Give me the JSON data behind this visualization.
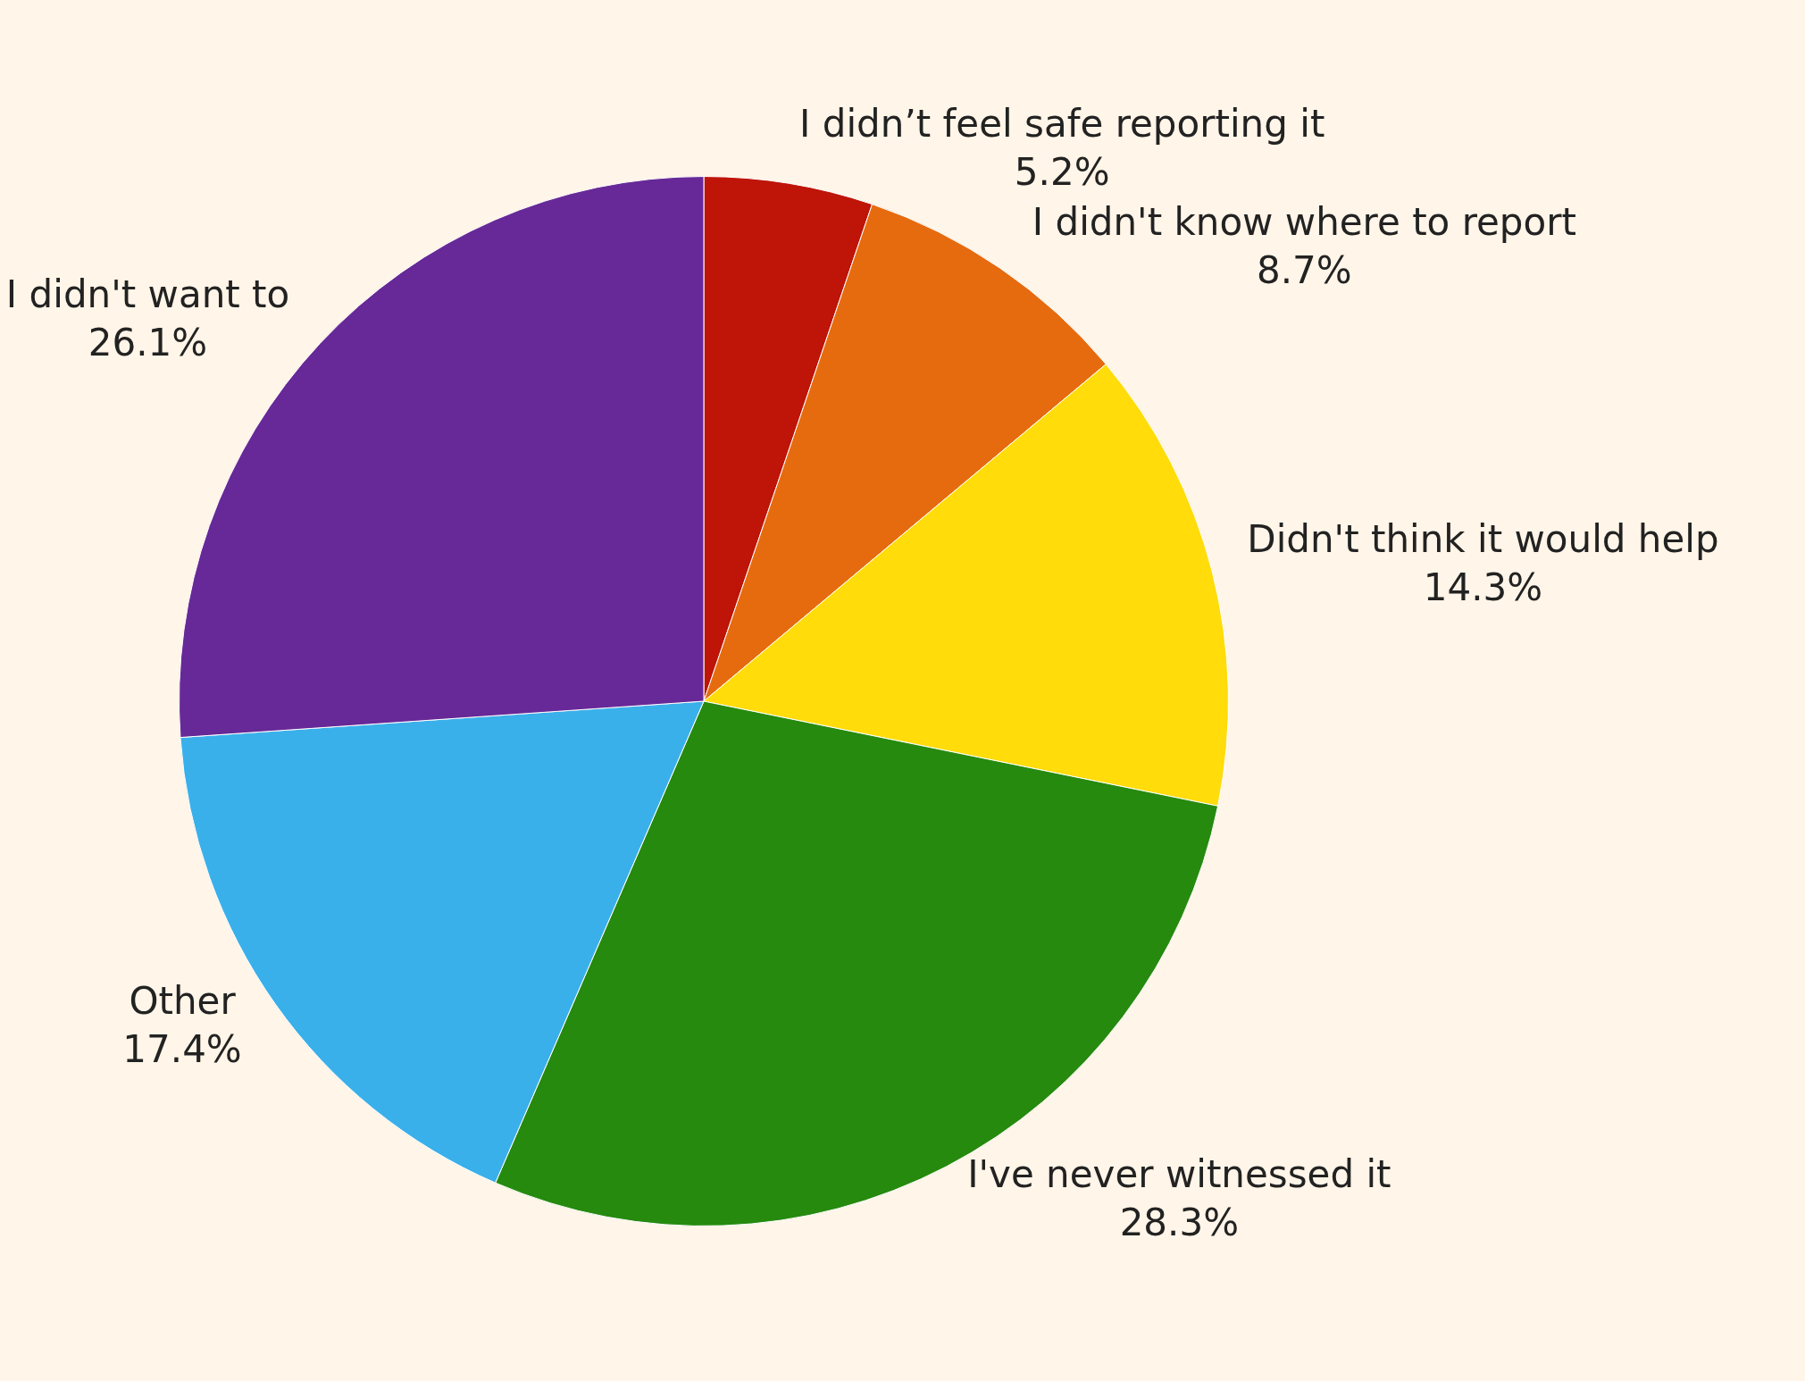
{
  "chart_data": {
    "type": "pie",
    "categories": [
      "I didn’t feel safe reporting it",
      "I didn't know where to report",
      "Didn't think it would help",
      "I've never witnessed it",
      "Other",
      "I didn't want to"
    ],
    "values": [
      5.2,
      8.7,
      14.3,
      28.3,
      17.4,
      26.1
    ],
    "value_labels": [
      "5.2%",
      "8.7%",
      "14.3%",
      "28.3%",
      "17.4%",
      "26.1%"
    ],
    "colors": [
      "#bf1408",
      "#e66b0f",
      "#ffdc0a",
      "#268a0e",
      "#3ab0ea",
      "#672997"
    ]
  }
}
